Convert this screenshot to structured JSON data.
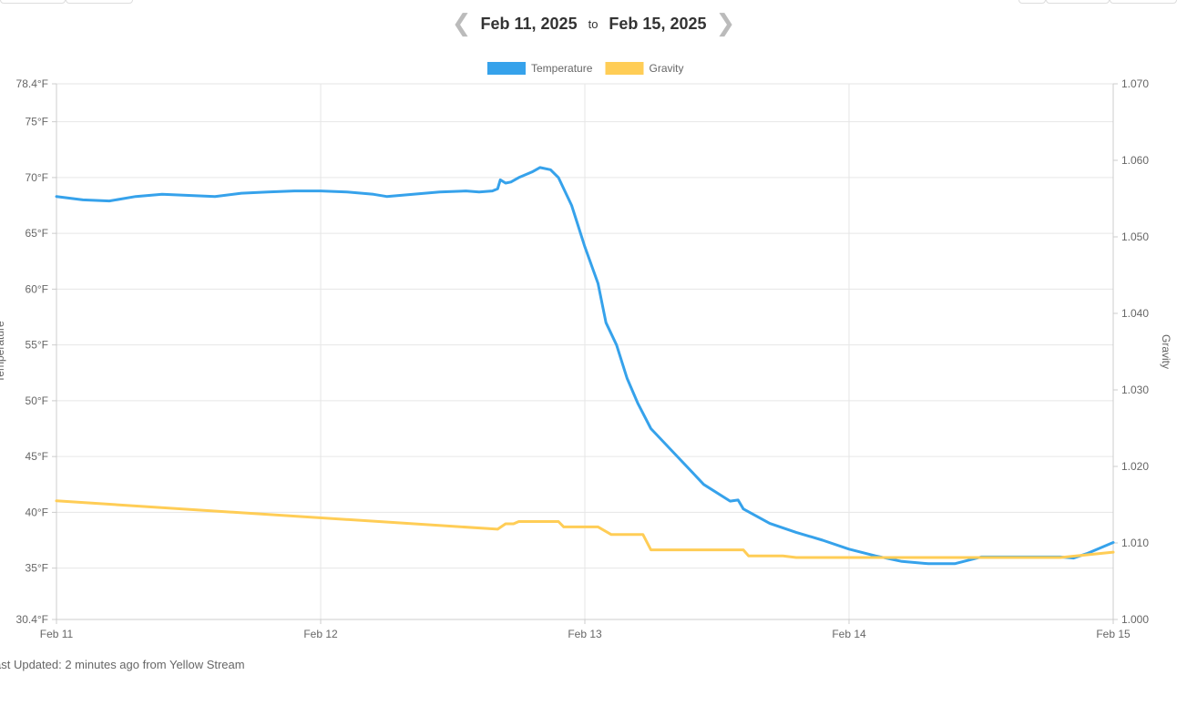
{
  "nav": {
    "prev_icon": "chevron-left-icon",
    "next_icon": "chevron-right-icon",
    "start_date": "Feb 11, 2025",
    "to_label": "to",
    "end_date": "Feb 15, 2025"
  },
  "footer": {
    "last_updated": "ast Updated: 2 minutes ago from Yellow Stream"
  },
  "chart_data": {
    "type": "line",
    "title": "",
    "legend_placement": "top-center",
    "grid": true,
    "x": {
      "ticks": [
        "Feb 11",
        "Feb 12",
        "Feb 13",
        "Feb 14",
        "Feb 15"
      ],
      "range_days": [
        11,
        15
      ]
    },
    "y_left": {
      "label": "Temperature",
      "range": [
        30.4,
        78.4
      ],
      "ticks": [
        "30.4°F",
        "35°F",
        "40°F",
        "45°F",
        "50°F",
        "55°F",
        "60°F",
        "65°F",
        "70°F",
        "75°F",
        "78.4°F"
      ],
      "tick_values": [
        30.4,
        35,
        40,
        45,
        50,
        55,
        60,
        65,
        70,
        75,
        78.4
      ]
    },
    "y_right": {
      "label": "Gravity",
      "range": [
        1.0,
        1.07
      ],
      "ticks": [
        "1.000",
        "1.010",
        "1.020",
        "1.030",
        "1.040",
        "1.050",
        "1.060",
        "1.070"
      ],
      "tick_values": [
        1.0,
        1.01,
        1.02,
        1.03,
        1.04,
        1.05,
        1.06,
        1.07
      ]
    },
    "series": [
      {
        "name": "Temperature",
        "axis": "left",
        "color": "#36a2eb",
        "points": [
          [
            11.0,
            68.3
          ],
          [
            11.1,
            68.0
          ],
          [
            11.2,
            67.9
          ],
          [
            11.3,
            68.3
          ],
          [
            11.4,
            68.5
          ],
          [
            11.5,
            68.4
          ],
          [
            11.6,
            68.3
          ],
          [
            11.7,
            68.6
          ],
          [
            11.8,
            68.7
          ],
          [
            11.9,
            68.8
          ],
          [
            12.0,
            68.8
          ],
          [
            12.1,
            68.7
          ],
          [
            12.2,
            68.5
          ],
          [
            12.25,
            68.3
          ],
          [
            12.35,
            68.5
          ],
          [
            12.45,
            68.7
          ],
          [
            12.55,
            68.8
          ],
          [
            12.6,
            68.7
          ],
          [
            12.65,
            68.8
          ],
          [
            12.67,
            69.0
          ],
          [
            12.68,
            69.8
          ],
          [
            12.7,
            69.5
          ],
          [
            12.72,
            69.6
          ],
          [
            12.75,
            70.0
          ],
          [
            12.8,
            70.5
          ],
          [
            12.83,
            70.9
          ],
          [
            12.87,
            70.7
          ],
          [
            12.9,
            70.0
          ],
          [
            12.95,
            67.5
          ],
          [
            13.0,
            63.8
          ],
          [
            13.05,
            60.5
          ],
          [
            13.08,
            57.0
          ],
          [
            13.12,
            55.0
          ],
          [
            13.16,
            52.0
          ],
          [
            13.2,
            49.8
          ],
          [
            13.25,
            47.5
          ],
          [
            13.35,
            45.0
          ],
          [
            13.45,
            42.5
          ],
          [
            13.55,
            41.0
          ],
          [
            13.58,
            41.1
          ],
          [
            13.6,
            40.3
          ],
          [
            13.7,
            39.0
          ],
          [
            13.8,
            38.2
          ],
          [
            13.9,
            37.5
          ],
          [
            14.0,
            36.7
          ],
          [
            14.1,
            36.1
          ],
          [
            14.2,
            35.6
          ],
          [
            14.3,
            35.4
          ],
          [
            14.4,
            35.4
          ],
          [
            14.5,
            36.0
          ],
          [
            14.6,
            36.0
          ],
          [
            14.7,
            36.0
          ],
          [
            14.8,
            36.0
          ],
          [
            14.85,
            35.9
          ],
          [
            14.9,
            36.3
          ],
          [
            15.0,
            37.3
          ]
        ]
      },
      {
        "name": "Gravity",
        "axis": "right",
        "color": "#ffcd56",
        "points": [
          [
            11.0,
            1.0155
          ],
          [
            12.67,
            1.0118
          ],
          [
            12.7,
            1.0125
          ],
          [
            12.73,
            1.0125
          ],
          [
            12.75,
            1.0128
          ],
          [
            12.9,
            1.0128
          ],
          [
            12.92,
            1.0121
          ],
          [
            13.05,
            1.0121
          ],
          [
            13.1,
            1.0111
          ],
          [
            13.22,
            1.0111
          ],
          [
            13.25,
            1.0091
          ],
          [
            13.6,
            1.0091
          ],
          [
            13.62,
            1.0083
          ],
          [
            13.75,
            1.0083
          ],
          [
            13.8,
            1.0081
          ],
          [
            14.0,
            1.0081
          ],
          [
            14.5,
            1.0081
          ],
          [
            14.8,
            1.0081
          ],
          [
            15.0,
            1.0088
          ]
        ]
      }
    ]
  }
}
